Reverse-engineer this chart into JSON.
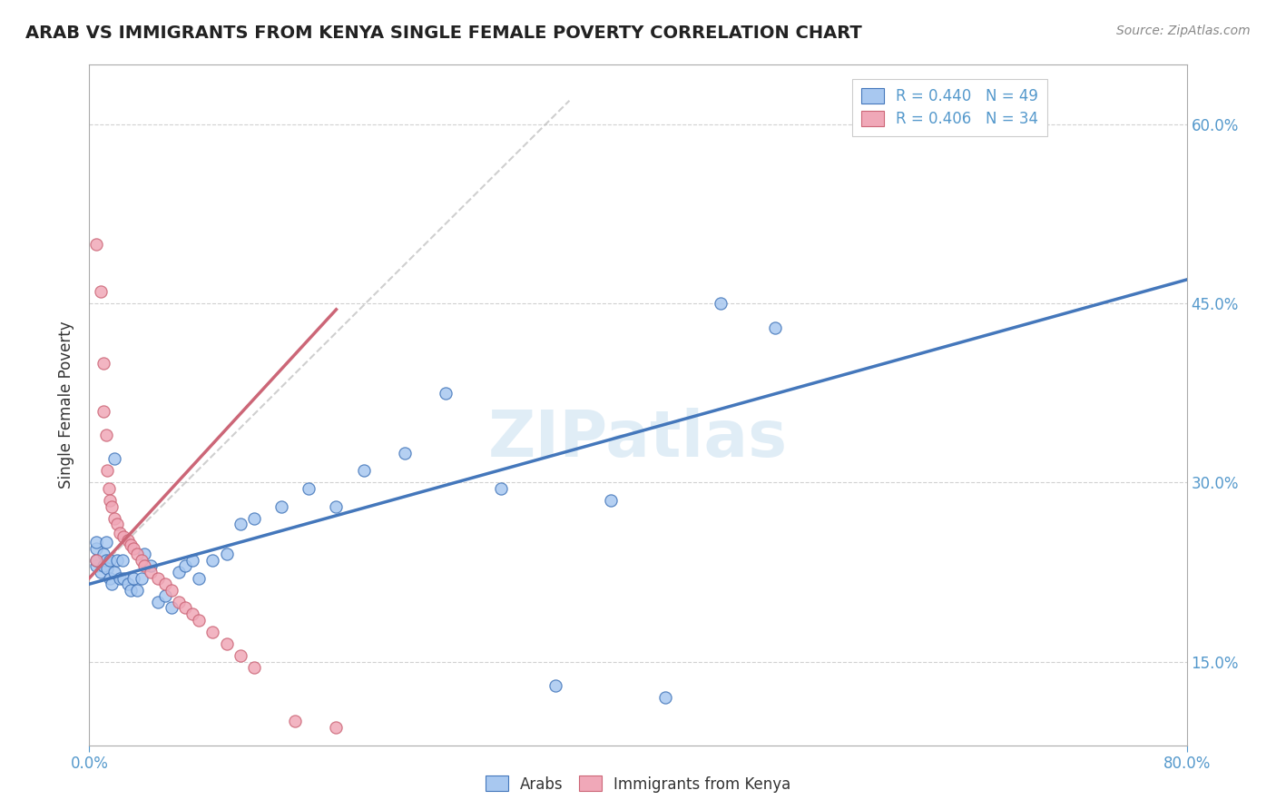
{
  "title": "ARAB VS IMMIGRANTS FROM KENYA SINGLE FEMALE POVERTY CORRELATION CHART",
  "source": "Source: ZipAtlas.com",
  "ylabel": "Single Female Poverty",
  "xlim": [
    0.0,
    0.8
  ],
  "ylim": [
    0.08,
    0.65
  ],
  "ytick_labels": [
    "15.0%",
    "30.0%",
    "45.0%",
    "60.0%"
  ],
  "ytick_values": [
    0.15,
    0.3,
    0.45,
    0.6
  ],
  "watermark": "ZIPatlas",
  "arab_color": "#a8c8f0",
  "kenya_color": "#f0a8b8",
  "line_arab_color": "#4477bb",
  "line_kenya_color": "#cc6677",
  "line_dashed_color": "#bbbbbb",
  "arab_scatter_x": [
    0.005,
    0.005,
    0.005,
    0.005,
    0.008,
    0.01,
    0.01,
    0.012,
    0.012,
    0.013,
    0.015,
    0.015,
    0.016,
    0.018,
    0.018,
    0.02,
    0.022,
    0.024,
    0.025,
    0.028,
    0.03,
    0.032,
    0.035,
    0.038,
    0.04,
    0.045,
    0.05,
    0.055,
    0.06,
    0.065,
    0.07,
    0.075,
    0.08,
    0.09,
    0.1,
    0.11,
    0.12,
    0.14,
    0.16,
    0.18,
    0.2,
    0.23,
    0.26,
    0.3,
    0.34,
    0.38,
    0.42,
    0.46,
    0.5
  ],
  "arab_scatter_y": [
    0.23,
    0.235,
    0.245,
    0.25,
    0.225,
    0.23,
    0.24,
    0.235,
    0.25,
    0.228,
    0.22,
    0.235,
    0.215,
    0.225,
    0.32,
    0.235,
    0.22,
    0.235,
    0.22,
    0.215,
    0.21,
    0.22,
    0.21,
    0.22,
    0.24,
    0.23,
    0.2,
    0.205,
    0.195,
    0.225,
    0.23,
    0.235,
    0.22,
    0.235,
    0.24,
    0.265,
    0.27,
    0.28,
    0.295,
    0.28,
    0.31,
    0.325,
    0.375,
    0.295,
    0.13,
    0.285,
    0.12,
    0.45,
    0.43
  ],
  "kenya_scatter_x": [
    0.005,
    0.005,
    0.008,
    0.01,
    0.01,
    0.012,
    0.013,
    0.014,
    0.015,
    0.016,
    0.018,
    0.02,
    0.022,
    0.025,
    0.028,
    0.03,
    0.032,
    0.035,
    0.038,
    0.04,
    0.045,
    0.05,
    0.055,
    0.06,
    0.065,
    0.07,
    0.075,
    0.08,
    0.09,
    0.1,
    0.11,
    0.12,
    0.15,
    0.18
  ],
  "kenya_scatter_y": [
    0.235,
    0.5,
    0.46,
    0.4,
    0.36,
    0.34,
    0.31,
    0.295,
    0.285,
    0.28,
    0.27,
    0.265,
    0.258,
    0.255,
    0.252,
    0.248,
    0.245,
    0.24,
    0.235,
    0.23,
    0.225,
    0.22,
    0.215,
    0.21,
    0.2,
    0.195,
    0.19,
    0.185,
    0.175,
    0.165,
    0.155,
    0.145,
    0.1,
    0.095
  ],
  "background_color": "#ffffff",
  "grid_color": "#cccccc"
}
